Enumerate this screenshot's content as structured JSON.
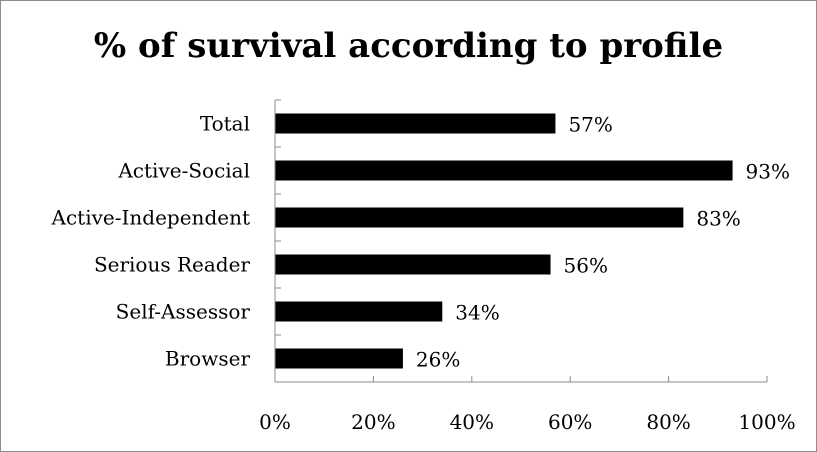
{
  "chart_data": {
    "type": "bar",
    "orientation": "horizontal",
    "title": "% of survival according to profile",
    "categories": [
      "Total",
      "Active-Social",
      "Active-Independent",
      "Serious Reader",
      "Self-Assessor",
      "Browser"
    ],
    "values": [
      57,
      93,
      83,
      56,
      34,
      26
    ],
    "data_labels": [
      "57%",
      "93%",
      "83%",
      "56%",
      "34%",
      "26%"
    ],
    "xlim": [
      0,
      100
    ],
    "x_ticks": [
      "0%",
      "20%",
      "40%",
      "60%",
      "80%",
      "100%"
    ],
    "xlabel": "",
    "ylabel": "",
    "grid": false,
    "legend": "none",
    "bar_color": "#000000"
  }
}
